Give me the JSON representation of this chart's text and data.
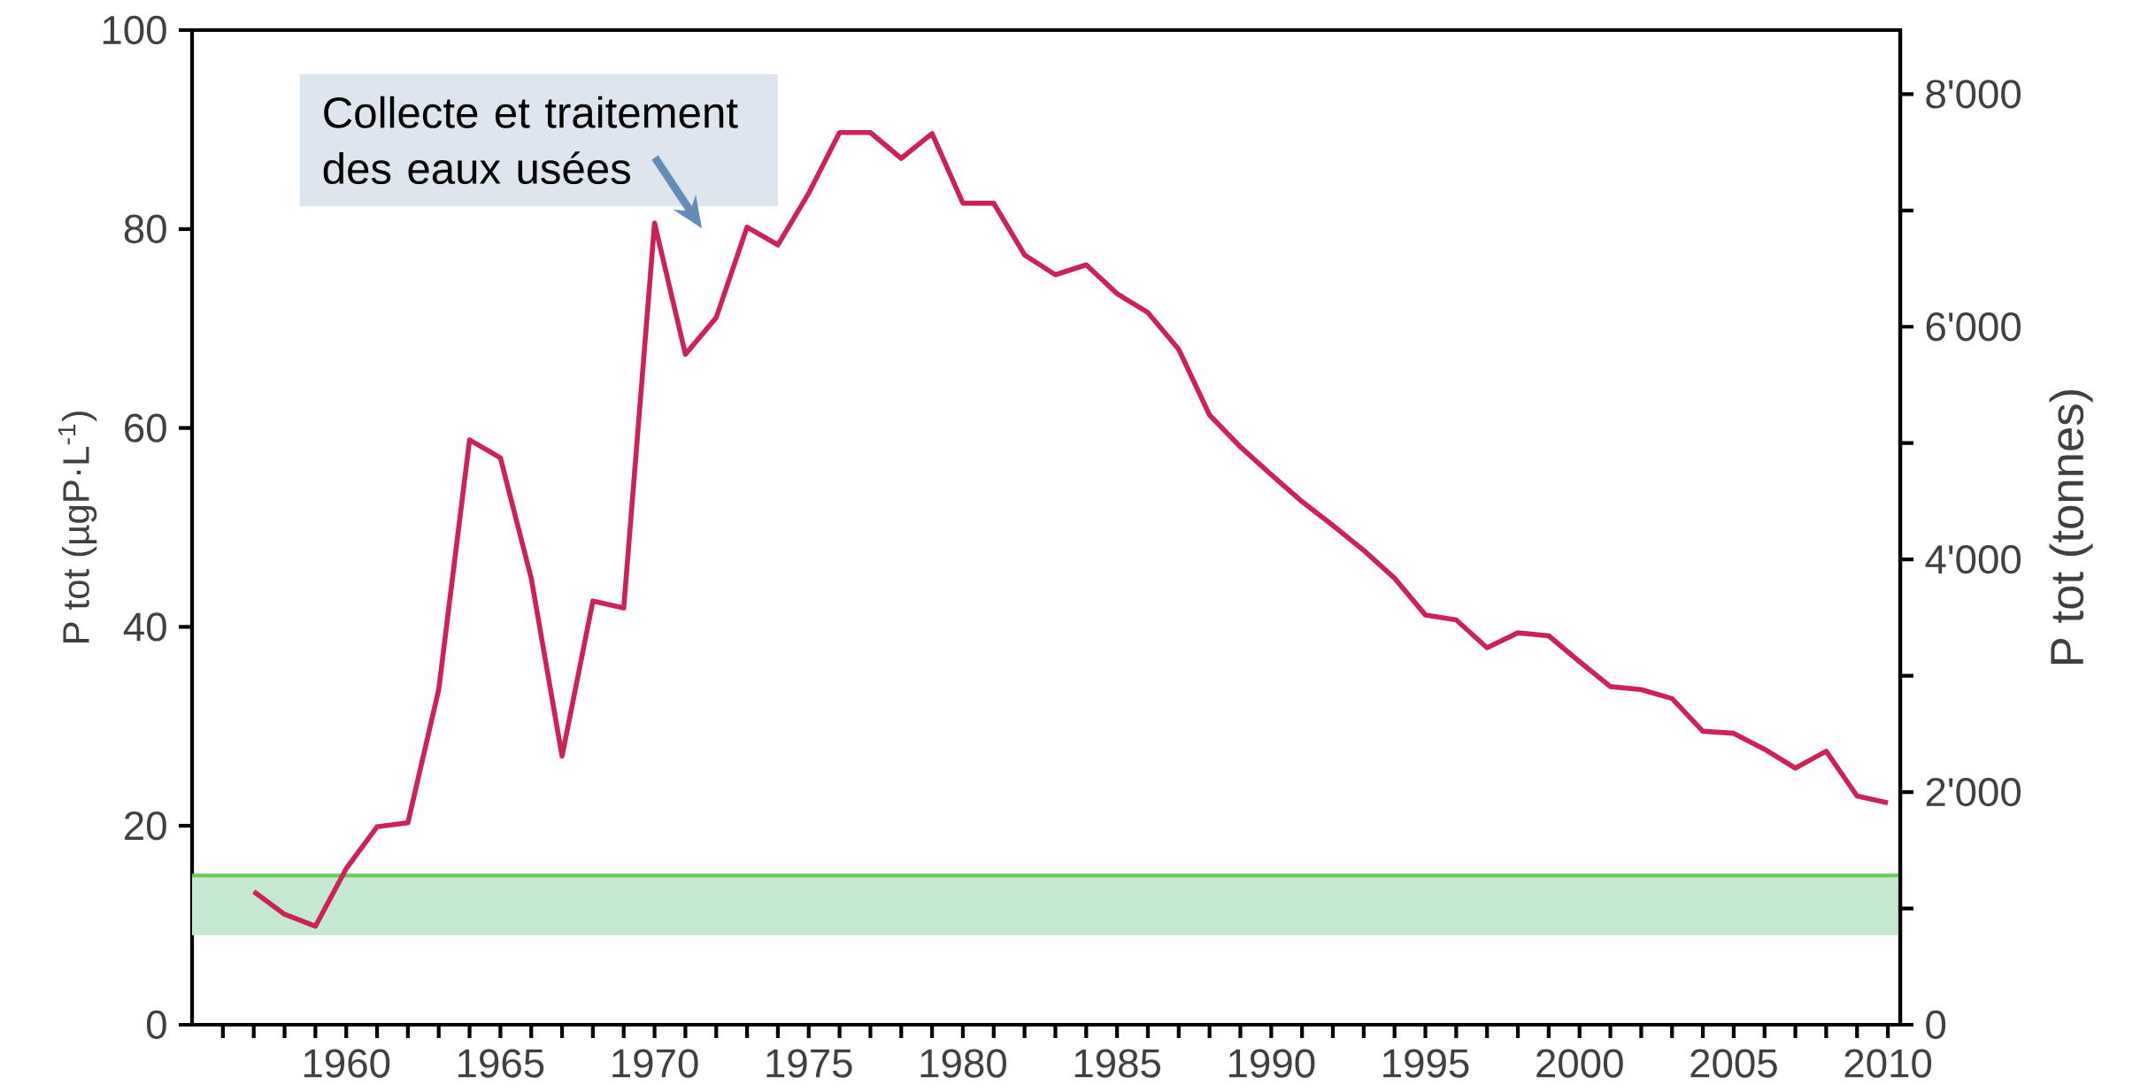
{
  "chart_data": {
    "type": "line",
    "ylabel": "P tot (µgP·L$^{-1}$)",
    "y2label": "P tot (tonnes)",
    "x": [
      1957,
      1958,
      1959,
      1960,
      1961,
      1962,
      1963,
      1964,
      1965,
      1966,
      1967,
      1968,
      1969,
      1970,
      1971,
      1972,
      1973,
      1974,
      1975,
      1976,
      1977,
      1978,
      1979,
      1980,
      1981,
      1982,
      1983,
      1984,
      1985,
      1986,
      1987,
      1988,
      1989,
      1990,
      1991,
      1992,
      1993,
      1994,
      1995,
      1996,
      1997,
      1998,
      1999,
      2000,
      2001,
      2002,
      2003,
      2004,
      2005,
      2006,
      2007,
      2008,
      2009,
      2010
    ],
    "series": [
      {
        "color": "#cc2255",
        "values": [
          13.4,
          11.1,
          9.9,
          15.7,
          19.9,
          20.3,
          33.7,
          58.8,
          57.0,
          44.9,
          27.0,
          42.6,
          41.9,
          80.6,
          67.4,
          71.1,
          80.2,
          78.4,
          83.6,
          89.7,
          89.7,
          87.1,
          89.6,
          82.6,
          82.6,
          77.4,
          75.4,
          76.4,
          73.5,
          71.6,
          67.9,
          61.3,
          58.1,
          55.3,
          52.6,
          50.2,
          47.7,
          44.9,
          41.2,
          40.7,
          37.9,
          39.4,
          39.1,
          36.5,
          34.0,
          33.7,
          32.8,
          29.5,
          29.3,
          27.7,
          25.8,
          27.5,
          23.0,
          22.3
        ]
      }
    ],
    "xlim": [
      1955,
      2010.4
    ],
    "xticks": [
      {
        "value": 1956,
        "label": null
      },
      {
        "value": 1957,
        "label": null
      },
      {
        "value": 1958,
        "label": null
      },
      {
        "value": 1959,
        "label": null
      },
      1960,
      {
        "value": 1961,
        "label": null
      },
      {
        "value": 1962,
        "label": null
      },
      {
        "value": 1963,
        "label": null
      },
      {
        "value": 1964,
        "label": null
      },
      1965,
      {
        "value": 1966,
        "label": null
      },
      {
        "value": 1967,
        "label": null
      },
      {
        "value": 1968,
        "label": null
      },
      {
        "value": 1969,
        "label": null
      },
      1970,
      {
        "value": 1971,
        "label": null
      },
      {
        "value": 1972,
        "label": null
      },
      {
        "value": 1973,
        "label": null
      },
      {
        "value": 1974,
        "label": null
      },
      1975,
      {
        "value": 1976,
        "label": null
      },
      {
        "value": 1977,
        "label": null
      },
      {
        "value": 1978,
        "label": null
      },
      {
        "value": 1979,
        "label": null
      },
      1980,
      {
        "value": 1981,
        "label": null
      },
      {
        "value": 1982,
        "label": null
      },
      {
        "value": 1983,
        "label": null
      },
      {
        "value": 1984,
        "label": null
      },
      1985,
      {
        "value": 1986,
        "label": null
      },
      {
        "value": 1987,
        "label": null
      },
      {
        "value": 1988,
        "label": null
      },
      {
        "value": 1989,
        "label": null
      },
      1990,
      {
        "value": 1991,
        "label": null
      },
      {
        "value": 1992,
        "label": null
      },
      {
        "value": 1993,
        "label": null
      },
      {
        "value": 1994,
        "label": null
      },
      1995,
      {
        "value": 1996,
        "label": null
      },
      {
        "value": 1997,
        "label": null
      },
      {
        "value": 1998,
        "label": null
      },
      {
        "value": 1999,
        "label": null
      },
      2000,
      {
        "value": 2001,
        "label": null
      },
      {
        "value": 2002,
        "label": null
      },
      {
        "value": 2003,
        "label": null
      },
      {
        "value": 2004,
        "label": null
      },
      2005,
      {
        "value": 2006,
        "label": null
      },
      {
        "value": 2007,
        "label": null
      },
      {
        "value": 2008,
        "label": null
      },
      {
        "value": 2009,
        "label": null
      },
      2010
    ],
    "ylim": [
      0,
      100
    ],
    "yticks": [
      0,
      20,
      40,
      60,
      80,
      100
    ],
    "y2lim": [
      0,
      8550
    ],
    "y2ticks": [
      {
        "value": 0,
        "label": "0"
      },
      {
        "value": 1000,
        "label": null
      },
      {
        "value": 2000,
        "label": "2'000"
      },
      {
        "value": 3000,
        "label": null
      },
      {
        "value": 4000,
        "label": "4'000"
      },
      {
        "value": 5000,
        "label": null
      },
      {
        "value": 6000,
        "label": "6'000"
      },
      {
        "value": 7000,
        "label": null
      },
      {
        "value": 8000,
        "label": "8'000"
      }
    ],
    "bands": [
      {
        "axis": "y",
        "from": 9,
        "to": 15,
        "color": "#c4e8d0"
      }
    ],
    "ref_lines": [
      {
        "axis": "y",
        "value": 15,
        "color": "#66cc55"
      }
    ],
    "annotations": [
      "Collecte et traitement des eaux usées"
    ]
  }
}
